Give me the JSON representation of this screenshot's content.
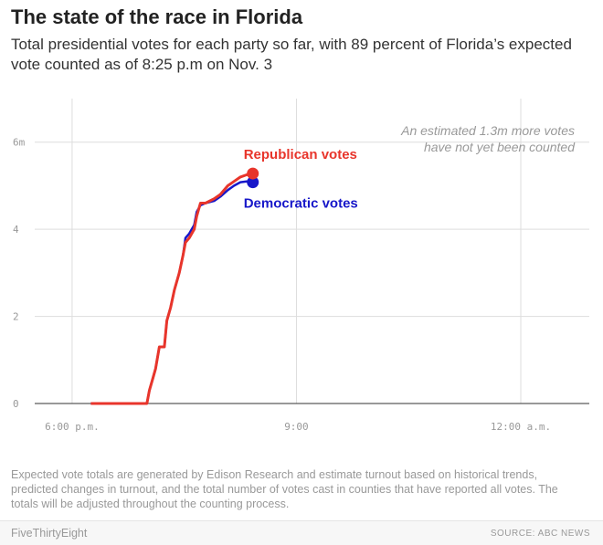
{
  "header": {
    "title": "The state of the race in Florida",
    "subtitle": "Total presidential votes for each party so far, with 89 percent of Florida’s expected vote counted as of 8:25 p.m on Nov. 3"
  },
  "chart_data": {
    "type": "line",
    "x_unit": "time",
    "y_unit": "votes (millions)",
    "xlim": [
      "17:30",
      "00:55"
    ],
    "ylim": [
      0,
      7
    ],
    "x_ticks": [
      {
        "time": "18:00",
        "label": "6:00 p.m."
      },
      {
        "time": "21:00",
        "label": "9:00"
      },
      {
        "time": "00:00",
        "label": "12:00 a.m."
      }
    ],
    "y_ticks": [
      {
        "value": 0,
        "label": "0"
      },
      {
        "value": 2,
        "label": "2"
      },
      {
        "value": 4,
        "label": "4"
      },
      {
        "value": 6,
        "label": "6m"
      }
    ],
    "grid": true,
    "annotation": {
      "line1": "An estimated 1.3m more votes",
      "line2": "have not yet been counted"
    },
    "series": [
      {
        "name": "Republican votes",
        "color": "#e8352b",
        "points": [
          [
            "18:15",
            0
          ],
          [
            "19:00",
            0
          ],
          [
            "19:02",
            0.3
          ],
          [
            "19:05",
            0.6
          ],
          [
            "19:07",
            0.8
          ],
          [
            "19:10",
            1.3
          ],
          [
            "19:14",
            1.3
          ],
          [
            "19:16",
            1.9
          ],
          [
            "19:19",
            2.2
          ],
          [
            "19:22",
            2.6
          ],
          [
            "19:26",
            3.0
          ],
          [
            "19:29",
            3.4
          ],
          [
            "19:31",
            3.7
          ],
          [
            "19:34",
            3.8
          ],
          [
            "19:38",
            4.0
          ],
          [
            "19:40",
            4.3
          ],
          [
            "19:43",
            4.6
          ],
          [
            "19:47",
            4.6
          ],
          [
            "19:54",
            4.7
          ],
          [
            "19:59",
            4.8
          ],
          [
            "20:05",
            5.0
          ],
          [
            "20:10",
            5.1
          ],
          [
            "20:15",
            5.2
          ],
          [
            "20:20",
            5.25
          ],
          [
            "20:25",
            5.28
          ]
        ]
      },
      {
        "name": "Democratic votes",
        "color": "#1717c9",
        "points": [
          [
            "18:15",
            0
          ],
          [
            "19:00",
            0
          ],
          [
            "19:02",
            0.3
          ],
          [
            "19:05",
            0.6
          ],
          [
            "19:07",
            0.8
          ],
          [
            "19:10",
            1.3
          ],
          [
            "19:14",
            1.3
          ],
          [
            "19:16",
            1.9
          ],
          [
            "19:19",
            2.2
          ],
          [
            "19:22",
            2.6
          ],
          [
            "19:26",
            3.0
          ],
          [
            "19:29",
            3.4
          ],
          [
            "19:31",
            3.8
          ],
          [
            "19:34",
            3.9
          ],
          [
            "19:38",
            4.1
          ],
          [
            "19:40",
            4.4
          ],
          [
            "19:43",
            4.55
          ],
          [
            "19:47",
            4.6
          ],
          [
            "19:54",
            4.65
          ],
          [
            "19:59",
            4.75
          ],
          [
            "20:05",
            4.9
          ],
          [
            "20:10",
            5.0
          ],
          [
            "20:15",
            5.08
          ],
          [
            "20:20",
            5.1
          ],
          [
            "20:25",
            5.08
          ]
        ]
      }
    ]
  },
  "footnote": "Expected vote totals are generated by Edison Research and estimate turnout based on historical trends, predicted changes in turnout, and the total number of votes cast in counties that have reported all votes. The totals will be adjusted throughout the counting process.",
  "footer": {
    "brand": "FiveThirtyEight",
    "source": "SOURCE: ABC NEWS"
  }
}
